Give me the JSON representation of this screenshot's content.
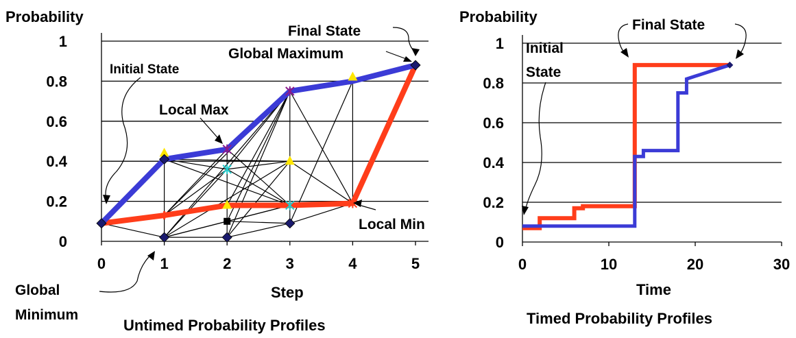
{
  "chart_data": [
    {
      "type": "line",
      "title": "Untimed Probability Profiles",
      "xlabel": "Step",
      "ylabel": "Probability",
      "xlim": [
        0,
        5
      ],
      "ylim": [
        0,
        1
      ],
      "x_ticks": [
        "0",
        "1",
        "2",
        "3",
        "4",
        "5"
      ],
      "y_ticks": [
        "0",
        "0.2",
        "0.4",
        "0.6",
        "0.8",
        "1"
      ],
      "grid": "horizontal",
      "series": [
        {
          "color": "#3b3bd6",
          "x": [
            0,
            1,
            2,
            3,
            4,
            5
          ],
          "values": [
            0.09,
            0.41,
            0.46,
            0.75,
            0.8,
            0.88
          ]
        },
        {
          "color": "#ff3d1a",
          "x": [
            0,
            1,
            2,
            3,
            4,
            5
          ],
          "values": [
            0.09,
            0.13,
            0.18,
            0.18,
            0.19,
            0.88
          ]
        }
      ],
      "nodes": [
        {
          "x": 0,
          "y": 0.09,
          "marker": "diamond",
          "color": "#1a1a6e"
        },
        {
          "x": 1,
          "y": 0.44,
          "marker": "triangle",
          "color": "#ffe600"
        },
        {
          "x": 1,
          "y": 0.41,
          "marker": "diamond",
          "color": "#1a1a6e"
        },
        {
          "x": 1,
          "y": 0.13,
          "marker": "cross",
          "color": "#ff3d1a"
        },
        {
          "x": 1,
          "y": 0.02,
          "marker": "diamond",
          "color": "#1a1a6e"
        },
        {
          "x": 2,
          "y": 0.46,
          "marker": "asterisk",
          "color": "#8b1a8b"
        },
        {
          "x": 2,
          "y": 0.36,
          "marker": "asterisk",
          "color": "#22cccc"
        },
        {
          "x": 2,
          "y": 0.18,
          "marker": "triangle",
          "color": "#ffe600"
        },
        {
          "x": 2,
          "y": 0.1,
          "marker": "square",
          "color": "#000000"
        },
        {
          "x": 2,
          "y": 0.02,
          "marker": "diamond",
          "color": "#1a1a6e"
        },
        {
          "x": 3,
          "y": 0.75,
          "marker": "asterisk",
          "color": "#8b1a8b"
        },
        {
          "x": 3,
          "y": 0.4,
          "marker": "triangle",
          "color": "#ffe600"
        },
        {
          "x": 3,
          "y": 0.18,
          "marker": "asterisk",
          "color": "#22cccc"
        },
        {
          "x": 3,
          "y": 0.09,
          "marker": "diamond",
          "color": "#1a1a6e"
        },
        {
          "x": 4,
          "y": 0.82,
          "marker": "triangle",
          "color": "#ffe600"
        },
        {
          "x": 4,
          "y": 0.19,
          "marker": "asterisk",
          "color": "#ff3d1a"
        },
        {
          "x": 5,
          "y": 0.88,
          "marker": "diamond",
          "color": "#1a1a6e"
        }
      ],
      "edges": [
        [
          [
            0,
            0.09
          ],
          [
            1,
            0.02
          ]
        ],
        [
          [
            0,
            0.09
          ],
          [
            1,
            0.41
          ]
        ],
        [
          [
            0,
            0.09
          ],
          [
            1,
            0.13
          ]
        ],
        [
          [
            1,
            0.41
          ],
          [
            1,
            0.02
          ]
        ],
        [
          [
            1,
            0.41
          ],
          [
            2,
            0.36
          ]
        ],
        [
          [
            1,
            0.41
          ],
          [
            3,
            0.4
          ]
        ],
        [
          [
            1,
            0.41
          ],
          [
            3,
            0.18
          ]
        ],
        [
          [
            1,
            0.13
          ],
          [
            2,
            0.46
          ]
        ],
        [
          [
            1,
            0.13
          ],
          [
            2,
            0.36
          ]
        ],
        [
          [
            1,
            0.13
          ],
          [
            3,
            0.75
          ]
        ],
        [
          [
            1,
            0.02
          ],
          [
            2,
            0.36
          ]
        ],
        [
          [
            1,
            0.02
          ],
          [
            2,
            0.1
          ]
        ],
        [
          [
            1,
            0.02
          ],
          [
            2,
            0.02
          ]
        ],
        [
          [
            1,
            0.02
          ],
          [
            3,
            0.75
          ]
        ],
        [
          [
            1,
            0.02
          ],
          [
            3,
            0.4
          ]
        ],
        [
          [
            1,
            0.02
          ],
          [
            3,
            0.18
          ]
        ],
        [
          [
            2,
            0.46
          ],
          [
            2,
            0.02
          ]
        ],
        [
          [
            2,
            0.46
          ],
          [
            3,
            0.18
          ]
        ],
        [
          [
            2,
            0.36
          ],
          [
            3,
            0.75
          ]
        ],
        [
          [
            2,
            0.36
          ],
          [
            3,
            0.4
          ]
        ],
        [
          [
            2,
            0.36
          ],
          [
            3,
            0.18
          ]
        ],
        [
          [
            2,
            0.18
          ],
          [
            3,
            0.75
          ]
        ],
        [
          [
            2,
            0.1
          ],
          [
            3,
            0.75
          ]
        ],
        [
          [
            2,
            0.1
          ],
          [
            3,
            0.18
          ]
        ],
        [
          [
            2,
            0.1
          ],
          [
            3,
            0.09
          ]
        ],
        [
          [
            2,
            0.02
          ],
          [
            3,
            0.75
          ]
        ],
        [
          [
            2,
            0.02
          ],
          [
            3,
            0.4
          ]
        ],
        [
          [
            2,
            0.02
          ],
          [
            3,
            0.09
          ]
        ],
        [
          [
            3,
            0.75
          ],
          [
            3,
            0.09
          ]
        ],
        [
          [
            3,
            0.75
          ],
          [
            4,
            0.19
          ]
        ],
        [
          [
            3,
            0.4
          ],
          [
            4,
            0.19
          ]
        ],
        [
          [
            3,
            0.09
          ],
          [
            4,
            0.8
          ]
        ],
        [
          [
            3,
            0.09
          ],
          [
            4,
            0.19
          ]
        ],
        [
          [
            4,
            0.8
          ],
          [
            4,
            0.19
          ]
        ]
      ],
      "annotations": [
        {
          "text": "Final State",
          "target": [
            5,
            0.88
          ]
        },
        {
          "text": "Global Maximum",
          "target": [
            5,
            0.88
          ]
        },
        {
          "text": "Initial State",
          "target": [
            0,
            0.09
          ]
        },
        {
          "text": "Local Max",
          "target": [
            2,
            0.46
          ]
        },
        {
          "text": "Local Min",
          "target": [
            4,
            0.19
          ]
        },
        {
          "text": "Global",
          "target": [
            1,
            0.02
          ]
        },
        {
          "text": "Minimum",
          "target": [
            1,
            0.02
          ]
        }
      ]
    },
    {
      "type": "line",
      "title": "Timed Probability Profiles",
      "xlabel": "Time",
      "ylabel": "Probability",
      "xlim": [
        0,
        30
      ],
      "ylim": [
        0,
        1
      ],
      "x_ticks": [
        "0",
        "10",
        "20",
        "30"
      ],
      "y_ticks": [
        "0",
        "0.2",
        "0.4",
        "0.6",
        "0.8",
        "1"
      ],
      "grid": "horizontal",
      "series": [
        {
          "color": "#ff3d1a",
          "step": true,
          "x": [
            0,
            2,
            2,
            6,
            6,
            7,
            7,
            13,
            13,
            24
          ],
          "values": [
            0.07,
            0.07,
            0.12,
            0.12,
            0.17,
            0.17,
            0.18,
            0.18,
            0.89,
            0.89
          ]
        },
        {
          "color": "#3b3bd6",
          "step": true,
          "x": [
            0,
            13,
            13,
            14,
            14,
            18,
            18,
            19,
            19,
            24
          ],
          "values": [
            0.08,
            0.08,
            0.43,
            0.43,
            0.46,
            0.46,
            0.75,
            0.75,
            0.82,
            0.89
          ]
        }
      ],
      "annotations": [
        {
          "text": "Final State",
          "target": [
            24,
            0.89
          ]
        },
        {
          "text": "Initial",
          "target": [
            0,
            0.08
          ]
        },
        {
          "text": "State",
          "target": [
            0,
            0.08
          ]
        }
      ]
    }
  ]
}
